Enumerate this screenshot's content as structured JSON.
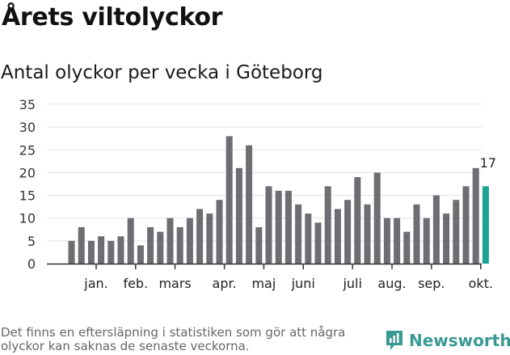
{
  "title": "Årets viltolyckor",
  "subtitle": "Antal olyckor per vecka i Göteborg",
  "footnote": "Det finns en eftersläpning i statistiken som gör att några olyckor kan saknas de senaste veckorna.",
  "brand": {
    "name": "Newsworthy",
    "icon": "newsworthy-logo-icon",
    "color": "#3a9a93"
  },
  "colors": {
    "bar": "#6d6d72",
    "highlight": "#1aa394",
    "grid": "#e3e3e3",
    "axis": "#333333"
  },
  "chart_data": {
    "type": "bar",
    "title": "Antal olyckor per vecka i Göteborg",
    "x_unit": "week",
    "values": [
      5,
      8,
      5,
      6,
      5,
      6,
      10,
      4,
      8,
      7,
      10,
      8,
      10,
      12,
      11,
      14,
      28,
      21,
      26,
      8,
      17,
      16,
      16,
      13,
      11,
      9,
      17,
      12,
      14,
      19,
      13,
      20,
      10,
      10,
      7,
      13,
      10,
      15,
      11,
      14,
      17,
      21,
      17
    ],
    "highlight_last": true,
    "last_label": "17",
    "yticks": [
      0,
      5,
      10,
      15,
      20,
      25,
      30,
      35
    ],
    "ylim": [
      0,
      35
    ],
    "grid": true,
    "month_labels": [
      {
        "label": "jan.",
        "at": 2.5
      },
      {
        "label": "feb.",
        "at": 6.5
      },
      {
        "label": "mars",
        "at": 10.5
      },
      {
        "label": "apr.",
        "at": 15.5
      },
      {
        "label": "maj",
        "at": 19.5
      },
      {
        "label": "juni",
        "at": 23.5
      },
      {
        "label": "juli",
        "at": 28.5
      },
      {
        "label": "aug.",
        "at": 32.5
      },
      {
        "label": "sep.",
        "at": 36.5
      },
      {
        "label": "okt.",
        "at": 41.5
      }
    ]
  }
}
